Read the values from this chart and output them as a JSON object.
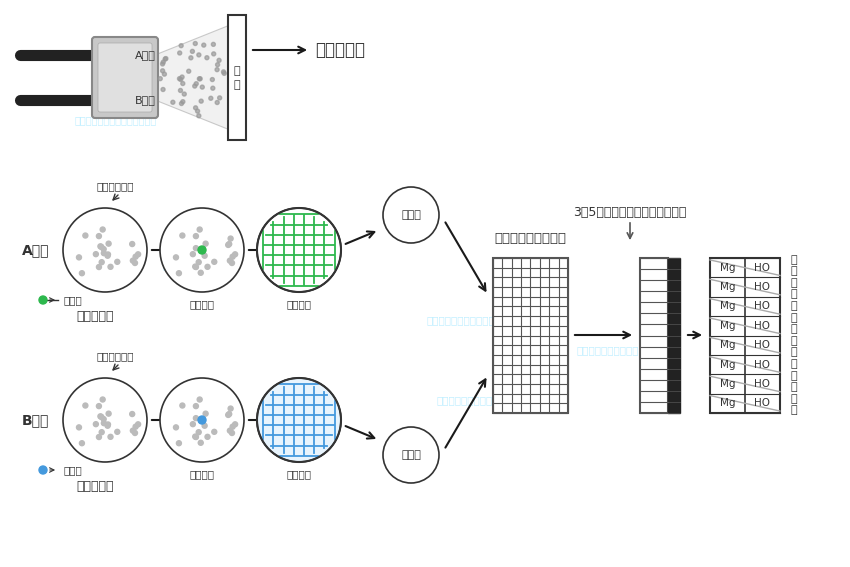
{
  "bg_color": "#ffffff",
  "watermark_color": "#00BFFF",
  "watermark_alpha": 0.25,
  "text_color": "#1a1a1a",
  "green_color": "#2db84d",
  "blue_color": "#4499dd",
  "gray_dot_color": "#bbbbbb",
  "arrow_color": "#1a1a1a",
  "title_top": "喷膜防水层",
  "label_A": "A组份",
  "label_B": "B组份",
  "label_monomer_A": "丙烯酸盐单体",
  "label_monomer_B": "丙烯酸盐单体",
  "label_stir_A": "搅拌混合",
  "label_stir_B": "搅拌混合",
  "label_mix_A": "混合均匀",
  "label_mix_B": "混合均匀",
  "label_cure_A": "固化剂",
  "label_cure_B": "固化剂",
  "label_add_cure_A": "添加固化剂",
  "label_add_cure_B": "添加固化剂",
  "label_free_radical_A": "自由基",
  "label_free_radical_B": "自由基",
  "label_collision": "在基层表面撞击混合",
  "label_3d": "3～5秒形成三维网状结构弹性体",
  "label_jimian": "基\n面",
  "label_penetrate": "渗\n透\n到\n混\n凝\n土\n表\n层\n产\n生\n化\n学\n粘\n接",
  "mg_labels": [
    "Mg",
    "Mg",
    "Mg",
    "Mg",
    "Mg",
    "Mg",
    "Mg",
    "Mg"
  ],
  "ho_labels": [
    "HO",
    "HO",
    "HO",
    "HO",
    "HO",
    "HO",
    "HO",
    "HO"
  ]
}
